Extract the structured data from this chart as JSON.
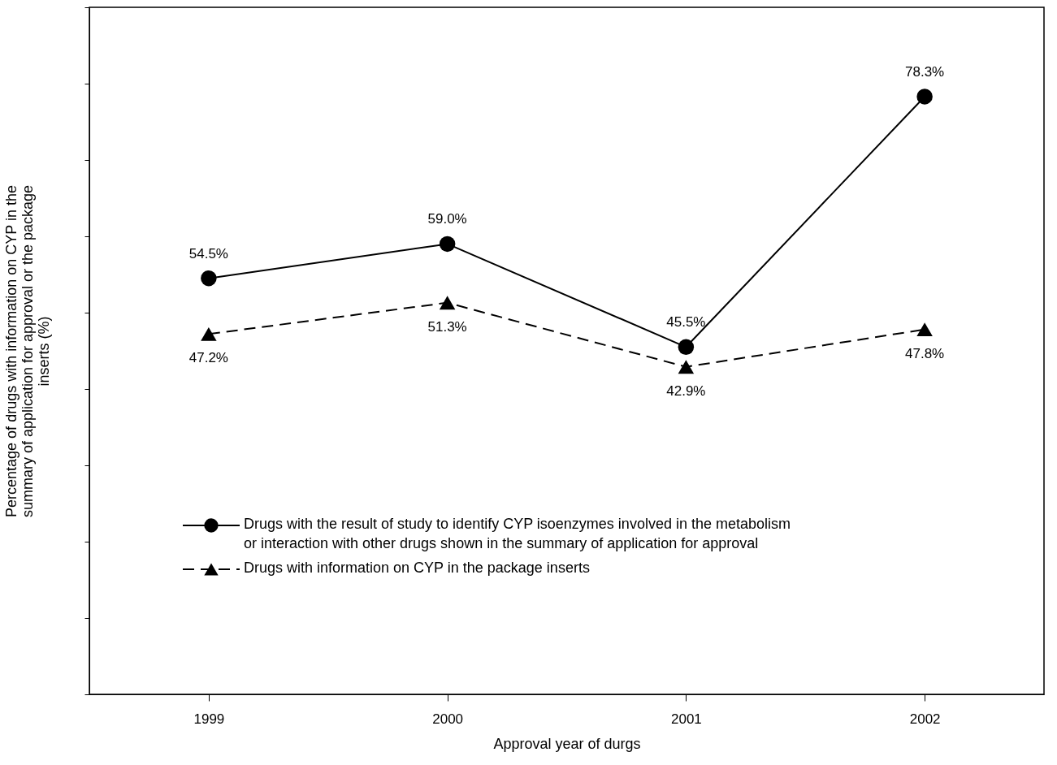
{
  "chart_data": {
    "type": "line",
    "xlabel": "Approval year of durgs",
    "ylabel": "Percentage of drugs with information on CYP in the summary of application for approval or the package inserts (%)",
    "categories": [
      "1999",
      "2000",
      "2001",
      "2002"
    ],
    "ylim": [
      0,
      90
    ],
    "tick_labels": "x",
    "series": [
      {
        "name": "Drugs with the result of study to identify CYP isoenzymes involved in the metabolism or interaction with other drugs shown in the summary of application for approval",
        "color": "#000000",
        "values": [
          54.5,
          59.0,
          45.5,
          78.3
        ],
        "value_labels": [
          "54.5%",
          "59.0%",
          "45.5%",
          "78.3%"
        ],
        "marker": "circle",
        "line_style": "solid"
      },
      {
        "name": "Drugs with information on CYP in the package inserts",
        "color": "#000000",
        "values": [
          47.2,
          51.3,
          42.9,
          47.8
        ],
        "value_labels": [
          "47.2%",
          "51.3%",
          "42.9%",
          "47.8%"
        ],
        "marker": "triangle",
        "line_style": "dashed"
      }
    ],
    "legend": "bottom",
    "grid": false
  }
}
